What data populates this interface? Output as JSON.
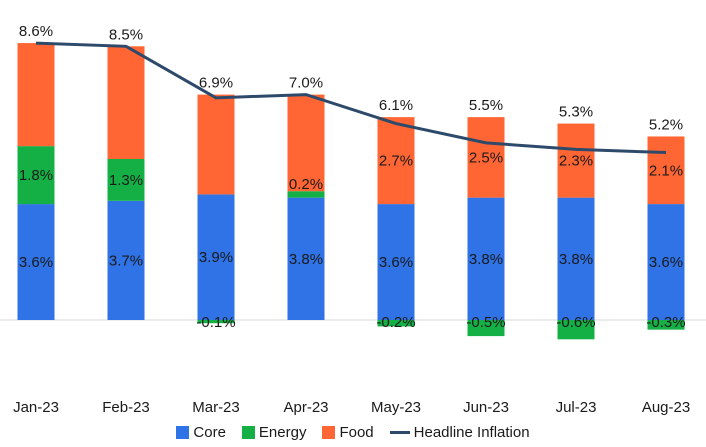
{
  "chart_data": {
    "type": "bar",
    "stacked": true,
    "categories": [
      "Jan-23",
      "Feb-23",
      "Mar-23",
      "Apr-23",
      "May-23",
      "Jun-23",
      "Jul-23",
      "Aug-23"
    ],
    "series": [
      {
        "name": "Core",
        "color": "#2f73e6",
        "values": [
          3.6,
          3.7,
          3.9,
          3.8,
          3.6,
          3.8,
          3.8,
          3.6
        ],
        "labels": [
          "3.6%",
          "3.7%",
          "3.9%",
          "3.8%",
          "3.6%",
          "3.8%",
          "3.8%",
          "3.6%"
        ]
      },
      {
        "name": "Energy",
        "color": "#14b045",
        "values": [
          1.8,
          1.3,
          -0.1,
          0.2,
          -0.2,
          -0.5,
          -0.6,
          -0.3
        ],
        "labels": [
          "1.8%",
          "1.3%",
          "-0.1%",
          "0.2%",
          "-0.2%",
          "-0.5%",
          "-0.6%",
          "-0.3%"
        ]
      },
      {
        "name": "Food",
        "color": "#ff6633",
        "values": [
          3.2,
          3.5,
          3.1,
          3.0,
          2.7,
          2.5,
          2.3,
          2.1
        ],
        "labels": [
          "",
          "",
          "",
          "",
          "2.7%",
          "2.5%",
          "2.3%",
          "2.1%"
        ]
      }
    ],
    "line": {
      "name": "Headline Inflation",
      "color": "#2e4a6b",
      "values": [
        8.6,
        8.5,
        6.9,
        7.0,
        6.1,
        5.5,
        5.3,
        5.2
      ],
      "labels": [
        "8.6%",
        "8.5%",
        "6.9%",
        "7.0%",
        "6.1%",
        "5.5%",
        "5.3%",
        "5.2%"
      ]
    },
    "ylim": [
      -1.2,
      9.0
    ],
    "legend_position": "bottom"
  }
}
